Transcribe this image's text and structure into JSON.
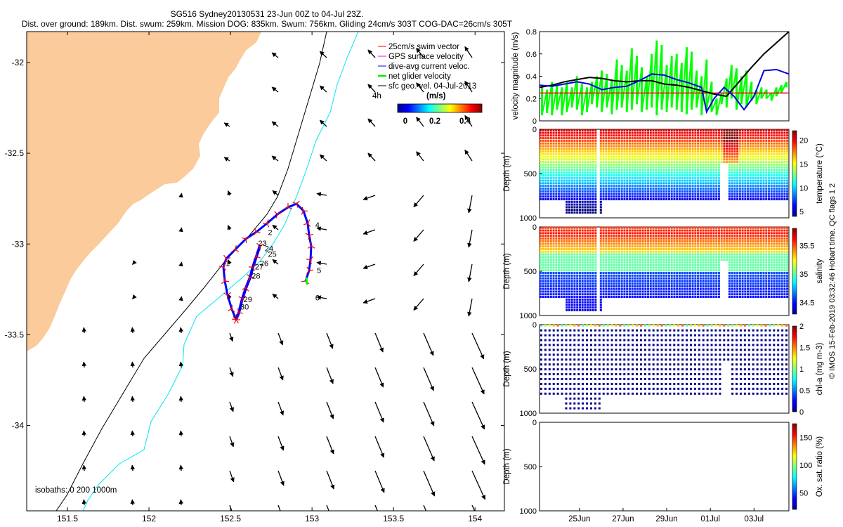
{
  "title_line1": "SG516 Sydney20130531 23-Jun 00Z to 04-Jul 23Z.",
  "title_line2": "Dist. over ground: 189km. Dist. swum: 259km. Mission DOG: 835km. Swum: 756km. Gliding 24cm/s 303T COG-DAC=26cm/s 305T",
  "footer_vertical": "© IMOS 15-Feb-2019 03:32:46 Hobart time. QC flags 1  2",
  "colors": {
    "land": "#FBCB9B",
    "swim": "#FF0000",
    "gps": "#FF00FF",
    "dac": "#0000FF",
    "net": "#00FF00",
    "geo": "#000000",
    "iso200": "#000000",
    "iso1000": "#00E5EE"
  },
  "chart_data": [
    {
      "type": "map",
      "name": "glider-track-map",
      "xticks": [
        "151.5",
        "152",
        "152.5",
        "153",
        "153.5",
        "154"
      ],
      "xtick_values": [
        151.5,
        152,
        152.5,
        153,
        153.5,
        154
      ],
      "yticks": [
        "-32",
        "-32.5",
        "-33",
        "-33.5",
        "-34"
      ],
      "ytick_values": [
        -32,
        -32.5,
        -33,
        -33.5,
        -34
      ],
      "xlim": [
        151.25,
        154.18
      ],
      "ylim": [
        -34.47,
        -31.83
      ],
      "legend": {
        "position": "top-right",
        "entries": [
          "25cm/s swim vector",
          "GPS surface velocity",
          "dive-avg current veloc.",
          "net glider velocity",
          "sfc geo. vel. 04-Jul-2013"
        ]
      },
      "scale_label": "4h",
      "colorbar": {
        "label": "(m/s)",
        "ticks": [
          "0",
          "0.2",
          "0.4"
        ],
        "range": [
          -0.05,
          0.5
        ]
      },
      "isobath_label": "isobaths: 0   200  1000m",
      "track_labels": [
        {
          "text": "1",
          "lon": 152.47,
          "lat": -33.12
        },
        {
          "text": "2",
          "lon": 152.73,
          "lat": -32.95
        },
        {
          "text": "4",
          "lon": 153.02,
          "lat": -32.91
        },
        {
          "text": "5",
          "lon": 153.03,
          "lat": -33.16
        },
        {
          "text": "6",
          "lon": 153.02,
          "lat": -33.31
        },
        {
          "text": "23",
          "lon": 152.67,
          "lat": -33.01
        },
        {
          "text": "24",
          "lon": 152.71,
          "lat": -33.04
        },
        {
          "text": "25",
          "lon": 152.73,
          "lat": -33.07
        },
        {
          "text": "26",
          "lon": 152.68,
          "lat": -33.12
        },
        {
          "text": "27",
          "lon": 152.65,
          "lat": -33.14
        },
        {
          "text": "28",
          "lon": 152.63,
          "lat": -33.19
        },
        {
          "text": "29",
          "lon": 152.58,
          "lat": -33.32
        },
        {
          "text": "30",
          "lon": 152.56,
          "lat": -33.36
        }
      ]
    },
    {
      "type": "line",
      "name": "velocity-magnitude",
      "ylabel": "velocity magnitude (m/s)",
      "ylim": [
        0,
        0.8
      ],
      "yticks": [
        "0",
        "0.2",
        "0.4",
        "0.6",
        "0.8"
      ],
      "series_swim_value": 0.25,
      "series_black_x": [
        0,
        0.05,
        0.1,
        0.15,
        0.2,
        0.25,
        0.3,
        0.35,
        0.4,
        0.45,
        0.5,
        0.55,
        0.6,
        0.65,
        0.7,
        0.75,
        0.8,
        0.85,
        0.9,
        0.95,
        1.0
      ],
      "series_black_y": [
        0.3,
        0.32,
        0.35,
        0.37,
        0.39,
        0.38,
        0.36,
        0.35,
        0.36,
        0.36,
        0.33,
        0.32,
        0.3,
        0.27,
        0.24,
        0.22,
        0.35,
        0.48,
        0.6,
        0.7,
        0.8
      ],
      "series_blue_x": [
        0,
        0.05,
        0.1,
        0.15,
        0.2,
        0.25,
        0.3,
        0.35,
        0.4,
        0.45,
        0.5,
        0.55,
        0.6,
        0.65,
        0.67,
        0.7,
        0.74,
        0.78,
        0.82,
        0.86,
        0.9,
        0.95,
        1.0
      ],
      "series_blue_y": [
        0.32,
        0.31,
        0.33,
        0.35,
        0.33,
        0.28,
        0.3,
        0.31,
        0.36,
        0.42,
        0.41,
        0.37,
        0.34,
        0.3,
        0.08,
        0.2,
        0.3,
        0.22,
        0.1,
        0.22,
        0.45,
        0.46,
        0.42
      ],
      "series_green_x": [
        0.01,
        0.03,
        0.05,
        0.07,
        0.09,
        0.11,
        0.13,
        0.15,
        0.17,
        0.19,
        0.21,
        0.23,
        0.25,
        0.27,
        0.29,
        0.31,
        0.33,
        0.35,
        0.37,
        0.39,
        0.41,
        0.43,
        0.45,
        0.47,
        0.49,
        0.51,
        0.53,
        0.55,
        0.57,
        0.59,
        0.61,
        0.63,
        0.65,
        0.67,
        0.69,
        0.71,
        0.73,
        0.75,
        0.77,
        0.79,
        0.81,
        0.83,
        0.85,
        0.87,
        0.89,
        0.91,
        0.93,
        0.95,
        0.97,
        0.99
      ],
      "series_green_hi": [
        0.3,
        0.28,
        0.35,
        0.32,
        0.3,
        0.36,
        0.3,
        0.4,
        0.33,
        0.3,
        0.35,
        0.4,
        0.45,
        0.42,
        0.37,
        0.55,
        0.5,
        0.45,
        0.65,
        0.58,
        0.48,
        0.4,
        0.6,
        0.72,
        0.68,
        0.5,
        0.58,
        0.6,
        0.52,
        0.66,
        0.62,
        0.45,
        0.4,
        0.55,
        0.35,
        0.2,
        0.25,
        0.38,
        0.5,
        0.47,
        0.4,
        0.45,
        0.35,
        0.28,
        0.3,
        0.28,
        0.25,
        0.3,
        0.32,
        0.35
      ],
      "series_green_lo": [
        0.05,
        0.07,
        0.05,
        0.1,
        0.05,
        0.08,
        0.12,
        0.1,
        0.05,
        0.08,
        0.15,
        0.12,
        0.08,
        0.12,
        0.06,
        0.1,
        0.12,
        0.08,
        0.1,
        0.15,
        0.08,
        0.1,
        0.12,
        0.05,
        0.1,
        0.08,
        0.12,
        0.1,
        0.08,
        0.06,
        0.1,
        0.12,
        0.05,
        0.1,
        0.08,
        0.05,
        0.15,
        0.12,
        0.2,
        0.1,
        0.15,
        0.12,
        0.18,
        0.15,
        0.2,
        0.2,
        0.18,
        0.22,
        0.25,
        0.3
      ]
    },
    {
      "type": "scatter",
      "name": "temperature-section",
      "ylabel": "Depth (m)",
      "colorbar_label": "temperature (°C)",
      "yticks": [
        "0",
        "500",
        "1000"
      ],
      "colorbar_ticks": [
        "5",
        "10",
        "15",
        "20"
      ],
      "clim": [
        4,
        22
      ]
    },
    {
      "type": "scatter",
      "name": "salinity-section",
      "ylabel": "Depth (m)",
      "colorbar_label": "salinity",
      "yticks": [
        "0",
        "500",
        "1000"
      ],
      "colorbar_ticks": [
        "34.5",
        "35",
        "35.5"
      ],
      "clim": [
        34.3,
        35.8
      ]
    },
    {
      "type": "scatter",
      "name": "chla-section",
      "ylabel": "Depth (m)",
      "colorbar_label": "chl-a (mg m-3)",
      "yticks": [
        "0",
        "500",
        "1000"
      ],
      "colorbar_ticks": [
        "0",
        "0.5",
        "1",
        "1.5",
        "2"
      ],
      "clim": [
        0,
        2
      ]
    },
    {
      "type": "scatter",
      "name": "oxygen-section",
      "ylabel": "Depth (m)",
      "colorbar_label": "Ox. sat. ratio (%)",
      "yticks": [
        "0",
        "500",
        "1000"
      ],
      "colorbar_ticks": [
        "50",
        "100",
        "150"
      ],
      "clim": [
        20,
        175
      ],
      "xticks": [
        "25Jun",
        "27Jun",
        "29Jun",
        "01Jul",
        "03Jul"
      ]
    }
  ]
}
